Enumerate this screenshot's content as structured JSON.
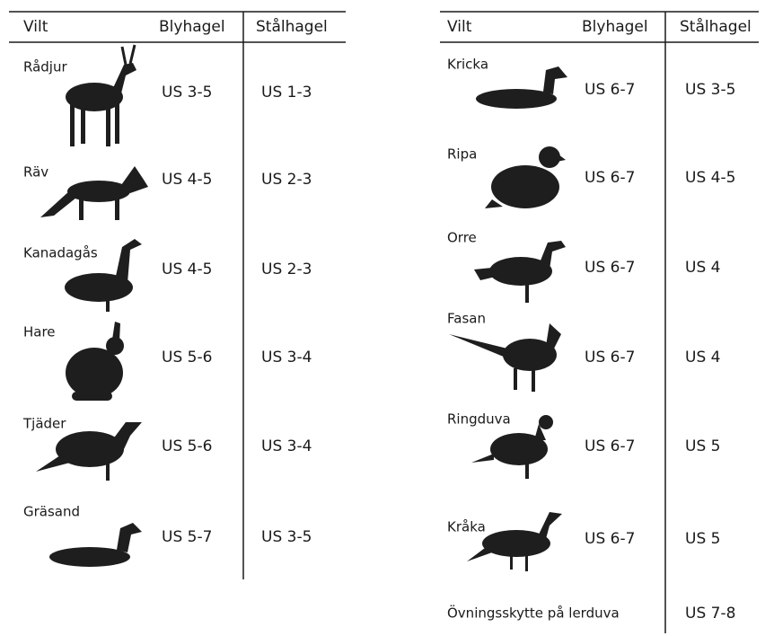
{
  "tables": [
    {
      "header": [
        "Vilt",
        "Blyhagel",
        "Stålhagel"
      ],
      "rows": [
        [
          "Rådjur",
          "US 3-5",
          "US 1-3"
        ],
        [
          "Räv",
          "US 4-5",
          "US 2-3"
        ],
        [
          "Kanadagås",
          "US 4-5",
          "US 2-3"
        ],
        [
          "Hare",
          "US 5-6",
          "US 3-4"
        ],
        [
          "Tjäder",
          "US 5-6",
          "US 3-4"
        ],
        [
          "Gräsand",
          "US 5-7",
          "US 3-5"
        ]
      ]
    },
    {
      "header": [
        "Vilt",
        "Blyhagel",
        "Stålhagel"
      ],
      "rows": [
        [
          "Kricka",
          "US 6-7",
          "US 3-5"
        ],
        [
          "Ripa",
          "US 6-7",
          "US 4-5"
        ],
        [
          "Orre",
          "US 6-7",
          "US 4"
        ],
        [
          "Fasan",
          "US 6-7",
          "US 4"
        ],
        [
          "Ringduva",
          "US 6-7",
          "US 5"
        ],
        [
          "Kråka",
          "US 6-7",
          "US 5"
        ]
      ],
      "footer": [
        "Övningsskytte på lerduva",
        "US 7-8"
      ]
    }
  ]
}
